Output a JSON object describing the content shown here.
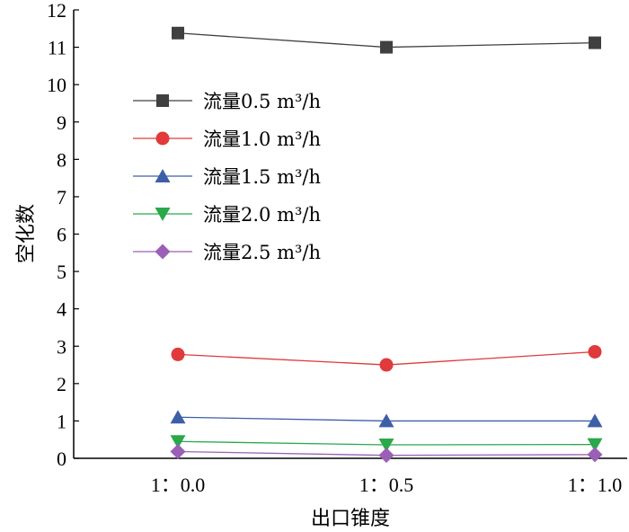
{
  "chart_data": {
    "type": "line",
    "title": "",
    "xlabel": "出口锥度",
    "ylabel": "空化数",
    "categories": [
      "1：0.0",
      "1：0.5",
      "1：1.0"
    ],
    "ylim": [
      0,
      12
    ],
    "yticks": [
      "0",
      "1",
      "2",
      "3",
      "4",
      "5",
      "6",
      "7",
      "8",
      "9",
      "10",
      "11",
      "12"
    ],
    "grid": false,
    "legend_position": "upper-left",
    "series": [
      {
        "name": "流量0.5 m³/h",
        "values": [
          11.38,
          11.0,
          11.12
        ],
        "color": "#404040",
        "marker": "square"
      },
      {
        "name": "流量1.0 m³/h",
        "values": [
          2.78,
          2.5,
          2.85
        ],
        "color": "#e03a3a",
        "marker": "circle"
      },
      {
        "name": "流量1.5 m³/h",
        "values": [
          1.1,
          1.0,
          1.0
        ],
        "color": "#3d5fa8",
        "marker": "triangle-up"
      },
      {
        "name": "流量2.0 m³/h",
        "values": [
          0.45,
          0.36,
          0.37
        ],
        "color": "#2aa84a",
        "marker": "triangle-down"
      },
      {
        "name": "流量2.5 m³/h",
        "values": [
          0.18,
          0.08,
          0.1
        ],
        "color": "#9b5fb5",
        "marker": "diamond"
      }
    ]
  }
}
